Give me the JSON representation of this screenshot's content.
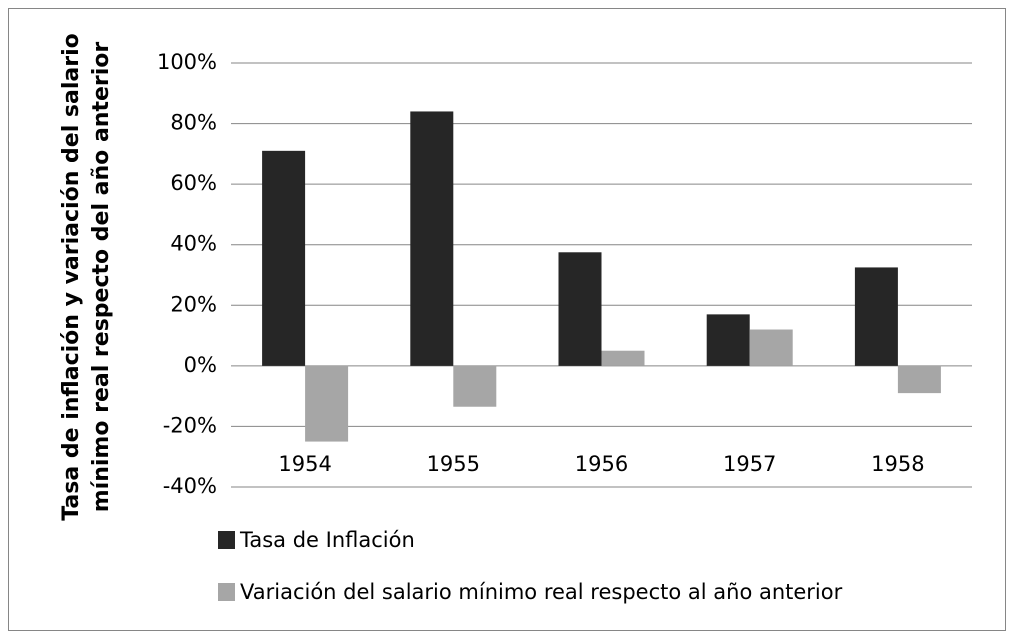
{
  "chart_data": {
    "type": "bar",
    "ylabel": [
      "Tasa de inflación y variación del salario",
      "mínimo real respecto del año anterior"
    ],
    "categories": [
      "1954",
      "1955",
      "1956",
      "1957",
      "1958"
    ],
    "series": [
      {
        "name": "Tasa de Inflación",
        "color": "#262626",
        "values": [
          71,
          84,
          37.5,
          17,
          32.5
        ]
      },
      {
        "name": "Variación del salario mínimo real respecto al año anterior",
        "color": "#a6a6a6",
        "values": [
          -25,
          -13.5,
          5,
          12,
          -9
        ]
      }
    ],
    "ylim": [
      -40,
      100
    ],
    "yticks": [
      {
        "value": -40,
        "label": "-40%"
      },
      {
        "value": -20,
        "label": "-20%"
      },
      {
        "value": 0,
        "label": "0%"
      },
      {
        "value": 20,
        "label": "20%"
      },
      {
        "value": 40,
        "label": "40%"
      },
      {
        "value": 60,
        "label": "60%"
      },
      {
        "value": 80,
        "label": "80%"
      },
      {
        "value": 100,
        "label": "100%"
      }
    ],
    "grid": true,
    "legend": "bottom"
  }
}
